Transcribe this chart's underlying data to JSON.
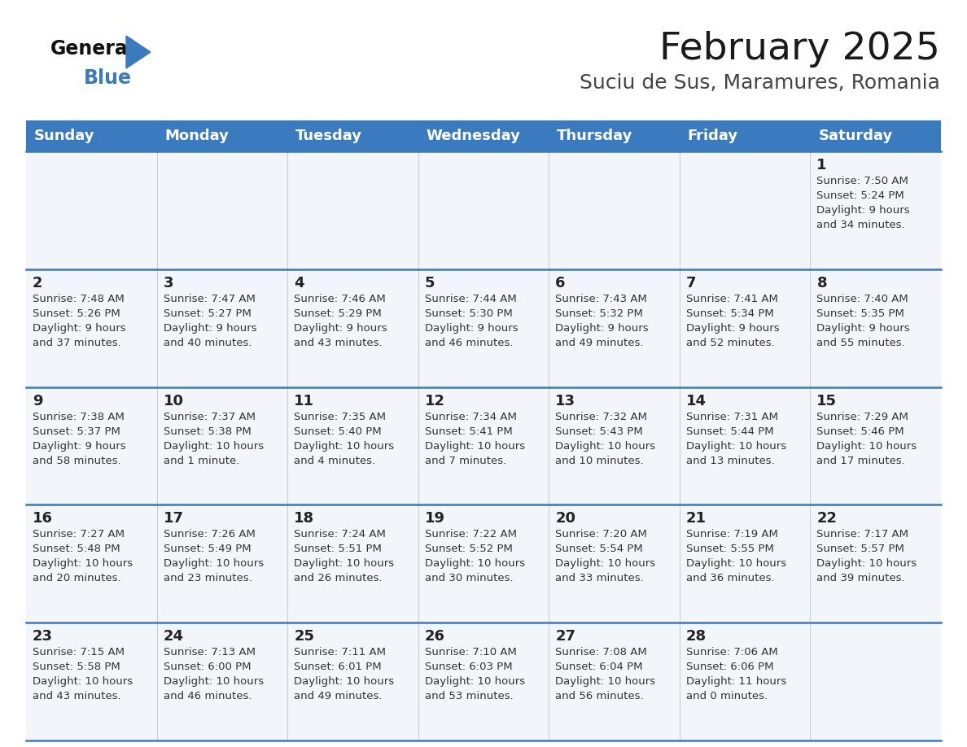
{
  "title": "February 2025",
  "subtitle": "Suciu de Sus, Maramures, Romania",
  "header_bg": "#3a7abf",
  "header_text": "#ffffff",
  "cell_bg": "#f2f6fa",
  "separator_color": "#3a7abf",
  "text_color": "#333333",
  "day_headers": [
    "Sunday",
    "Monday",
    "Tuesday",
    "Wednesday",
    "Thursday",
    "Friday",
    "Saturday"
  ],
  "weeks": [
    [
      {
        "day": "",
        "sunrise": "",
        "sunset": "",
        "daylight": ""
      },
      {
        "day": "",
        "sunrise": "",
        "sunset": "",
        "daylight": ""
      },
      {
        "day": "",
        "sunrise": "",
        "sunset": "",
        "daylight": ""
      },
      {
        "day": "",
        "sunrise": "",
        "sunset": "",
        "daylight": ""
      },
      {
        "day": "",
        "sunrise": "",
        "sunset": "",
        "daylight": ""
      },
      {
        "day": "",
        "sunrise": "",
        "sunset": "",
        "daylight": ""
      },
      {
        "day": "1",
        "sunrise": "7:50 AM",
        "sunset": "5:24 PM",
        "daylight": "9 hours\nand 34 minutes."
      }
    ],
    [
      {
        "day": "2",
        "sunrise": "7:48 AM",
        "sunset": "5:26 PM",
        "daylight": "9 hours\nand 37 minutes."
      },
      {
        "day": "3",
        "sunrise": "7:47 AM",
        "sunset": "5:27 PM",
        "daylight": "9 hours\nand 40 minutes."
      },
      {
        "day": "4",
        "sunrise": "7:46 AM",
        "sunset": "5:29 PM",
        "daylight": "9 hours\nand 43 minutes."
      },
      {
        "day": "5",
        "sunrise": "7:44 AM",
        "sunset": "5:30 PM",
        "daylight": "9 hours\nand 46 minutes."
      },
      {
        "day": "6",
        "sunrise": "7:43 AM",
        "sunset": "5:32 PM",
        "daylight": "9 hours\nand 49 minutes."
      },
      {
        "day": "7",
        "sunrise": "7:41 AM",
        "sunset": "5:34 PM",
        "daylight": "9 hours\nand 52 minutes."
      },
      {
        "day": "8",
        "sunrise": "7:40 AM",
        "sunset": "5:35 PM",
        "daylight": "9 hours\nand 55 minutes."
      }
    ],
    [
      {
        "day": "9",
        "sunrise": "7:38 AM",
        "sunset": "5:37 PM",
        "daylight": "9 hours\nand 58 minutes."
      },
      {
        "day": "10",
        "sunrise": "7:37 AM",
        "sunset": "5:38 PM",
        "daylight": "10 hours\nand 1 minute."
      },
      {
        "day": "11",
        "sunrise": "7:35 AM",
        "sunset": "5:40 PM",
        "daylight": "10 hours\nand 4 minutes."
      },
      {
        "day": "12",
        "sunrise": "7:34 AM",
        "sunset": "5:41 PM",
        "daylight": "10 hours\nand 7 minutes."
      },
      {
        "day": "13",
        "sunrise": "7:32 AM",
        "sunset": "5:43 PM",
        "daylight": "10 hours\nand 10 minutes."
      },
      {
        "day": "14",
        "sunrise": "7:31 AM",
        "sunset": "5:44 PM",
        "daylight": "10 hours\nand 13 minutes."
      },
      {
        "day": "15",
        "sunrise": "7:29 AM",
        "sunset": "5:46 PM",
        "daylight": "10 hours\nand 17 minutes."
      }
    ],
    [
      {
        "day": "16",
        "sunrise": "7:27 AM",
        "sunset": "5:48 PM",
        "daylight": "10 hours\nand 20 minutes."
      },
      {
        "day": "17",
        "sunrise": "7:26 AM",
        "sunset": "5:49 PM",
        "daylight": "10 hours\nand 23 minutes."
      },
      {
        "day": "18",
        "sunrise": "7:24 AM",
        "sunset": "5:51 PM",
        "daylight": "10 hours\nand 26 minutes."
      },
      {
        "day": "19",
        "sunrise": "7:22 AM",
        "sunset": "5:52 PM",
        "daylight": "10 hours\nand 30 minutes."
      },
      {
        "day": "20",
        "sunrise": "7:20 AM",
        "sunset": "5:54 PM",
        "daylight": "10 hours\nand 33 minutes."
      },
      {
        "day": "21",
        "sunrise": "7:19 AM",
        "sunset": "5:55 PM",
        "daylight": "10 hours\nand 36 minutes."
      },
      {
        "day": "22",
        "sunrise": "7:17 AM",
        "sunset": "5:57 PM",
        "daylight": "10 hours\nand 39 minutes."
      }
    ],
    [
      {
        "day": "23",
        "sunrise": "7:15 AM",
        "sunset": "5:58 PM",
        "daylight": "10 hours\nand 43 minutes."
      },
      {
        "day": "24",
        "sunrise": "7:13 AM",
        "sunset": "6:00 PM",
        "daylight": "10 hours\nand 46 minutes."
      },
      {
        "day": "25",
        "sunrise": "7:11 AM",
        "sunset": "6:01 PM",
        "daylight": "10 hours\nand 49 minutes."
      },
      {
        "day": "26",
        "sunrise": "7:10 AM",
        "sunset": "6:03 PM",
        "daylight": "10 hours\nand 53 minutes."
      },
      {
        "day": "27",
        "sunrise": "7:08 AM",
        "sunset": "6:04 PM",
        "daylight": "10 hours\nand 56 minutes."
      },
      {
        "day": "28",
        "sunrise": "7:06 AM",
        "sunset": "6:06 PM",
        "daylight": "11 hours\nand 0 minutes."
      },
      {
        "day": "",
        "sunrise": "",
        "sunset": "",
        "daylight": ""
      }
    ]
  ]
}
